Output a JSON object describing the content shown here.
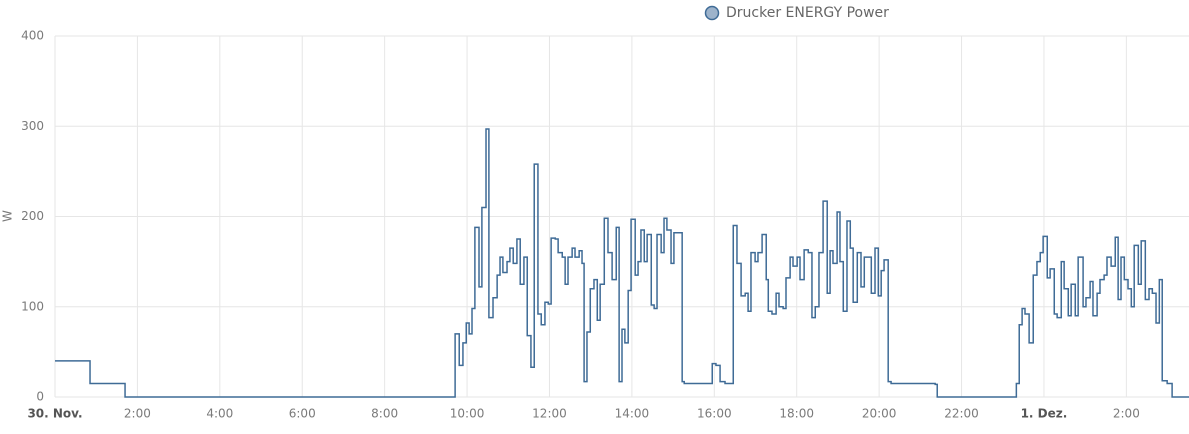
{
  "chart_data": {
    "type": "step-line",
    "y_label": "W",
    "series": [
      {
        "name": "Drucker ENERGY Power",
        "color": "#3f6b96",
        "x": [
          0,
          0.85,
          1.7,
          9.71,
          9.81,
          9.9,
          9.98,
          10.05,
          10.12,
          10.19,
          10.29,
          10.36,
          10.46,
          10.53,
          10.63,
          10.73,
          10.8,
          10.87,
          10.97,
          11.04,
          11.12,
          11.21,
          11.29,
          11.38,
          11.46,
          11.55,
          11.63,
          11.72,
          11.8,
          11.89,
          11.97,
          12.04,
          12.14,
          12.21,
          12.31,
          12.38,
          12.45,
          12.55,
          12.62,
          12.72,
          12.79,
          12.84,
          12.91,
          12.99,
          13.08,
          13.16,
          13.23,
          13.33,
          13.42,
          13.52,
          13.62,
          13.69,
          13.76,
          13.83,
          13.91,
          13.98,
          14.08,
          14.15,
          14.22,
          14.3,
          14.37,
          14.47,
          14.54,
          14.61,
          14.71,
          14.78,
          14.85,
          14.95,
          15.02,
          15.22,
          15.27,
          15.95,
          16.04,
          16.14,
          16.26,
          16.46,
          16.55,
          16.65,
          16.75,
          16.82,
          16.89,
          16.99,
          17.06,
          17.16,
          17.26,
          17.31,
          17.4,
          17.5,
          17.57,
          17.67,
          17.74,
          17.84,
          17.91,
          18.01,
          18.08,
          18.18,
          18.28,
          18.37,
          18.45,
          18.54,
          18.64,
          18.74,
          18.81,
          18.88,
          18.98,
          19.05,
          19.13,
          19.22,
          19.3,
          19.37,
          19.47,
          19.56,
          19.64,
          19.73,
          19.81,
          19.9,
          19.98,
          20.05,
          20.12,
          20.22,
          20.29,
          21.36,
          21.41,
          23.25,
          23.33,
          23.4,
          23.47,
          23.54,
          23.64,
          23.74,
          23.83,
          23.91,
          23.98,
          24.08,
          24.15,
          24.25,
          24.32,
          24.42,
          24.49,
          24.59,
          24.66,
          24.76,
          24.83,
          24.95,
          25.02,
          25.12,
          25.19,
          25.29,
          25.36,
          25.46,
          25.53,
          25.63,
          25.73,
          25.8,
          25.87,
          25.95,
          26.04,
          26.12,
          26.19,
          26.29,
          26.36,
          26.46,
          26.55,
          26.63,
          26.72,
          26.8,
          26.87,
          26.99,
          27.11,
          27.52
        ],
        "values": [
          40,
          15,
          0,
          70,
          35,
          60,
          82,
          70,
          98,
          188,
          122,
          210,
          297,
          88,
          110,
          135,
          155,
          138,
          150,
          165,
          148,
          175,
          125,
          155,
          68,
          33,
          258,
          92,
          80,
          105,
          103,
          176,
          175,
          160,
          155,
          125,
          155,
          165,
          155,
          162,
          148,
          17,
          72,
          120,
          130,
          85,
          125,
          198,
          160,
          130,
          188,
          17,
          75,
          60,
          118,
          197,
          135,
          150,
          185,
          150,
          180,
          102,
          98,
          180,
          160,
          198,
          185,
          148,
          182,
          17,
          15,
          37,
          35,
          17,
          15,
          190,
          148,
          112,
          115,
          95,
          160,
          150,
          160,
          180,
          130,
          95,
          92,
          115,
          100,
          98,
          132,
          155,
          145,
          155,
          130,
          163,
          160,
          88,
          100,
          160,
          217,
          115,
          162,
          148,
          205,
          150,
          95,
          195,
          165,
          105,
          160,
          122,
          155,
          155,
          115,
          165,
          112,
          140,
          152,
          17,
          15,
          14,
          0,
          0,
          15,
          80,
          98,
          92,
          60,
          135,
          150,
          160,
          178,
          132,
          142,
          92,
          88,
          150,
          120,
          90,
          125,
          90,
          155,
          100,
          110,
          128,
          90,
          115,
          130,
          135,
          155,
          145,
          177,
          108,
          155,
          130,
          120,
          100,
          168,
          125,
          173,
          108,
          120,
          115,
          82,
          130,
          18,
          15,
          0,
          0
        ]
      }
    ],
    "xlim": [
      0,
      27.52
    ],
    "xticks": [
      {
        "value": 0,
        "label": "30. Nov."
      },
      {
        "value": 2,
        "label": "2:00"
      },
      {
        "value": 4,
        "label": "4:00"
      },
      {
        "value": 6,
        "label": "6:00"
      },
      {
        "value": 8,
        "label": "8:00"
      },
      {
        "value": 10,
        "label": "10:00"
      },
      {
        "value": 12,
        "label": "12:00"
      },
      {
        "value": 14,
        "label": "14:00"
      },
      {
        "value": 16,
        "label": "16:00"
      },
      {
        "value": 18,
        "label": "18:00"
      },
      {
        "value": 20,
        "label": "20:00"
      },
      {
        "value": 22,
        "label": "22:00"
      },
      {
        "value": 24,
        "label": "1. Dez."
      },
      {
        "value": 26,
        "label": "2:00"
      }
    ],
    "ylim": [
      0,
      400
    ],
    "yticks": [
      0,
      100,
      200,
      300,
      400
    ],
    "grid": true
  }
}
